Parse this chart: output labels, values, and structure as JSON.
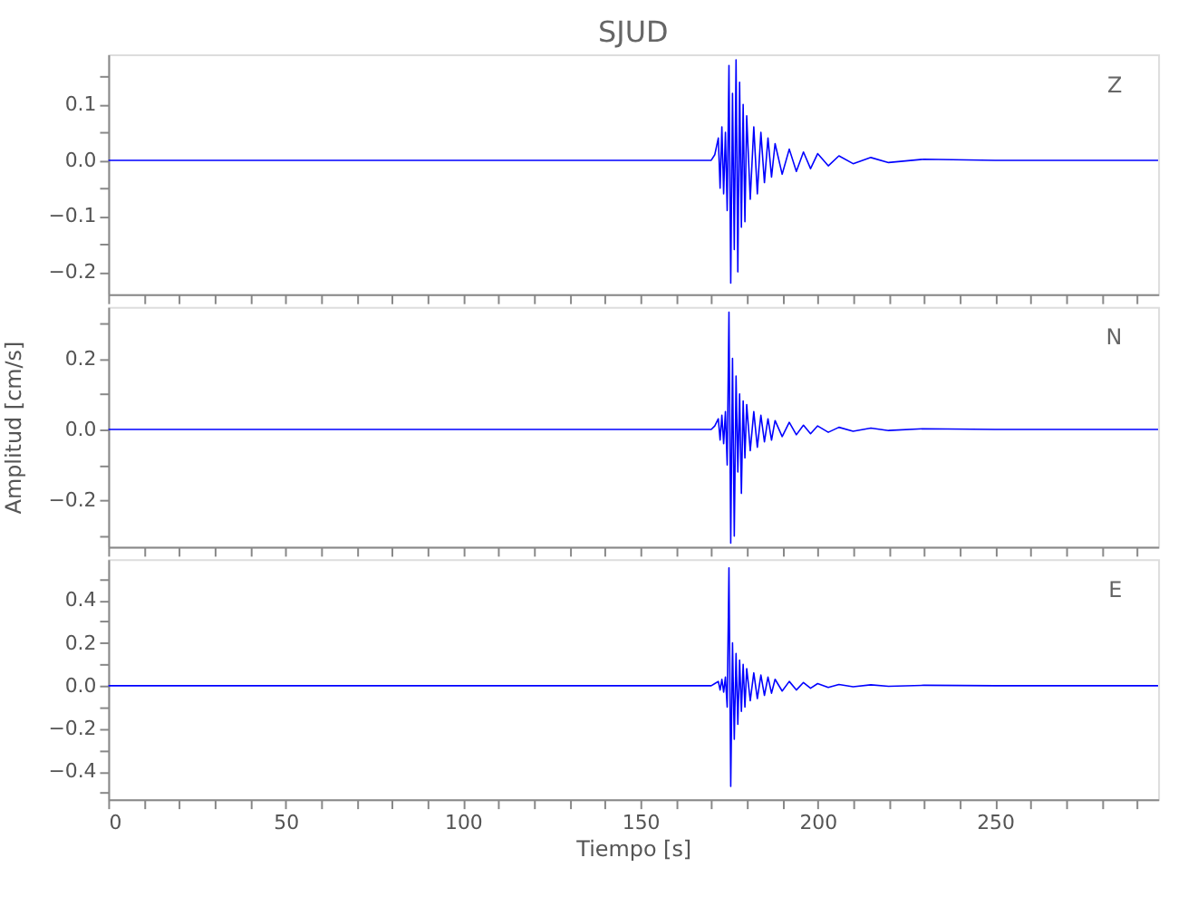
{
  "chart_data": [
    {
      "type": "line",
      "title": "SJUD",
      "annotations": [
        "Z"
      ],
      "tick_labels": "y",
      "grid": false,
      "marker": "none",
      "line_style": "solid",
      "xlim": [
        0,
        296
      ],
      "xticks": [
        0,
        {
          "value": 10,
          "label": null
        },
        {
          "value": 20,
          "label": null
        },
        {
          "value": 30,
          "label": null
        },
        {
          "value": 40,
          "label": null
        },
        50,
        {
          "value": 60,
          "label": null
        },
        {
          "value": 70,
          "label": null
        },
        {
          "value": 80,
          "label": null
        },
        {
          "value": 90,
          "label": null
        },
        100,
        {
          "value": 110,
          "label": null
        },
        {
          "value": 120,
          "label": null
        },
        {
          "value": 130,
          "label": null
        },
        {
          "value": 140,
          "label": null
        },
        150,
        {
          "value": 160,
          "label": null
        },
        {
          "value": 170,
          "label": null
        },
        {
          "value": 180,
          "label": null
        },
        {
          "value": 190,
          "label": null
        },
        200,
        {
          "value": 210,
          "label": null
        },
        {
          "value": 220,
          "label": null
        },
        {
          "value": 230,
          "label": null
        },
        {
          "value": 240,
          "label": null
        },
        250,
        {
          "value": 260,
          "label": null
        },
        {
          "value": 270,
          "label": null
        },
        {
          "value": 280,
          "label": null
        },
        {
          "value": 290,
          "label": null
        }
      ],
      "ylim": [
        -0.24,
        0.19
      ],
      "yticks": [
        {
          "value": -0.2,
          "label": "−0.2"
        },
        {
          "value": -0.15,
          "label": null
        },
        {
          "value": -0.1,
          "label": "−0.1"
        },
        {
          "value": -0.05,
          "label": null
        },
        {
          "value": 0,
          "label": "0.0"
        },
        {
          "value": 0.05,
          "label": null
        },
        {
          "value": 0.1,
          "label": "0.1"
        },
        {
          "value": 0.15,
          "label": null
        }
      ],
      "series": [
        {
          "color": "#0000ff",
          "x": [
            0,
            50,
            100,
            150,
            170,
            171,
            172,
            172.5,
            173,
            173.5,
            174,
            174.5,
            175,
            175.5,
            176,
            176.5,
            177,
            177.5,
            178,
            178.5,
            179,
            179.5,
            180,
            181,
            182,
            183,
            184,
            185,
            186,
            187,
            188,
            190,
            192,
            194,
            196,
            198,
            200,
            203,
            206,
            210,
            215,
            220,
            230,
            250,
            296
          ],
          "values": [
            0,
            0,
            0,
            0,
            0,
            0.01,
            0.04,
            -0.05,
            0.06,
            -0.06,
            0.05,
            -0.09,
            0.17,
            -0.22,
            0.12,
            -0.16,
            0.18,
            -0.2,
            0.14,
            -0.12,
            0.1,
            -0.11,
            0.08,
            -0.07,
            0.06,
            -0.06,
            0.05,
            -0.04,
            0.04,
            -0.03,
            0.03,
            -0.025,
            0.02,
            -0.02,
            0.015,
            -0.015,
            0.012,
            -0.01,
            0.008,
            -0.006,
            0.005,
            -0.004,
            0.002,
            0,
            0
          ]
        }
      ]
    },
    {
      "type": "line",
      "ylabel": "Amplitud [cm/s]",
      "annotations": [
        "N"
      ],
      "tick_labels": "y",
      "grid": false,
      "marker": "none",
      "line_style": "solid",
      "xlim": [
        0,
        296
      ],
      "xticks": [
        0,
        {
          "value": 10,
          "label": null
        },
        {
          "value": 20,
          "label": null
        },
        {
          "value": 30,
          "label": null
        },
        {
          "value": 40,
          "label": null
        },
        50,
        {
          "value": 60,
          "label": null
        },
        {
          "value": 70,
          "label": null
        },
        {
          "value": 80,
          "label": null
        },
        {
          "value": 90,
          "label": null
        },
        100,
        {
          "value": 110,
          "label": null
        },
        {
          "value": 120,
          "label": null
        },
        {
          "value": 130,
          "label": null
        },
        {
          "value": 140,
          "label": null
        },
        150,
        {
          "value": 160,
          "label": null
        },
        {
          "value": 170,
          "label": null
        },
        {
          "value": 180,
          "label": null
        },
        {
          "value": 190,
          "label": null
        },
        200,
        {
          "value": 210,
          "label": null
        },
        {
          "value": 220,
          "label": null
        },
        {
          "value": 230,
          "label": null
        },
        {
          "value": 240,
          "label": null
        },
        250,
        {
          "value": 260,
          "label": null
        },
        {
          "value": 270,
          "label": null
        },
        {
          "value": 280,
          "label": null
        },
        {
          "value": 290,
          "label": null
        }
      ],
      "ylim": [
        -0.33,
        0.345
      ],
      "yticks": [
        {
          "value": -0.3,
          "label": null
        },
        {
          "value": -0.2,
          "label": "−0.2"
        },
        {
          "value": -0.1,
          "label": null
        },
        {
          "value": 0,
          "label": "0.0"
        },
        {
          "value": 0.1,
          "label": null
        },
        {
          "value": 0.2,
          "label": "0.2"
        },
        {
          "value": 0.3,
          "label": null
        }
      ],
      "series": [
        {
          "color": "#0000ff",
          "x": [
            0,
            50,
            100,
            150,
            170,
            171,
            172,
            172.5,
            173,
            173.5,
            174,
            174.5,
            175,
            175.5,
            176,
            176.5,
            177,
            177.5,
            178,
            178.5,
            179,
            179.5,
            180,
            181,
            182,
            183,
            184,
            185,
            186,
            187,
            188,
            190,
            192,
            194,
            196,
            198,
            200,
            203,
            206,
            210,
            215,
            220,
            230,
            250,
            296
          ],
          "values": [
            0,
            0,
            0,
            0,
            0,
            0.01,
            0.03,
            -0.03,
            0.04,
            -0.04,
            0.05,
            -0.1,
            0.33,
            -0.32,
            0.2,
            -0.3,
            0.15,
            -0.12,
            0.1,
            -0.18,
            0.08,
            -0.08,
            0.07,
            -0.06,
            0.05,
            -0.05,
            0.04,
            -0.035,
            0.03,
            -0.03,
            0.025,
            -0.02,
            0.02,
            -0.015,
            0.012,
            -0.012,
            0.01,
            -0.008,
            0.006,
            -0.005,
            0.004,
            -0.003,
            0.002,
            0,
            0
          ]
        }
      ]
    },
    {
      "type": "line",
      "xlabel": "Tiempo [s]",
      "annotations": [
        "E"
      ],
      "grid": false,
      "marker": "none",
      "line_style": "solid",
      "xlim": [
        0,
        296
      ],
      "xticks": [
        0,
        {
          "value": 10,
          "label": null
        },
        {
          "value": 20,
          "label": null
        },
        {
          "value": 30,
          "label": null
        },
        {
          "value": 40,
          "label": null
        },
        50,
        {
          "value": 60,
          "label": null
        },
        {
          "value": 70,
          "label": null
        },
        {
          "value": 80,
          "label": null
        },
        {
          "value": 90,
          "label": null
        },
        100,
        {
          "value": 110,
          "label": null
        },
        {
          "value": 120,
          "label": null
        },
        {
          "value": 130,
          "label": null
        },
        {
          "value": 140,
          "label": null
        },
        150,
        {
          "value": 160,
          "label": null
        },
        {
          "value": 170,
          "label": null
        },
        {
          "value": 180,
          "label": null
        },
        {
          "value": 190,
          "label": null
        },
        200,
        {
          "value": 210,
          "label": null
        },
        {
          "value": 220,
          "label": null
        },
        {
          "value": 230,
          "label": null
        },
        {
          "value": 240,
          "label": null
        },
        250,
        {
          "value": 260,
          "label": null
        },
        {
          "value": 270,
          "label": null
        },
        {
          "value": 280,
          "label": null
        },
        {
          "value": 290,
          "label": null
        }
      ],
      "ylim": [
        -0.53,
        0.59
      ],
      "yticks": [
        {
          "value": -0.5,
          "label": null
        },
        {
          "value": -0.4,
          "label": "−0.4"
        },
        {
          "value": -0.3,
          "label": null
        },
        {
          "value": -0.2,
          "label": "−0.2"
        },
        {
          "value": -0.1,
          "label": null
        },
        {
          "value": 0,
          "label": "0.0"
        },
        {
          "value": 0.1,
          "label": null
        },
        {
          "value": 0.2,
          "label": "0.2"
        },
        {
          "value": 0.3,
          "label": null
        },
        {
          "value": 0.4,
          "label": "0.4"
        },
        {
          "value": 0.5,
          "label": null
        }
      ],
      "series": [
        {
          "color": "#0000ff",
          "x": [
            0,
            50,
            100,
            150,
            170,
            171,
            172,
            172.5,
            173,
            173.5,
            174,
            174.5,
            175,
            175.5,
            176,
            176.5,
            177,
            177.5,
            178,
            178.5,
            179,
            179.5,
            180,
            181,
            182,
            183,
            184,
            185,
            186,
            187,
            188,
            190,
            192,
            194,
            196,
            198,
            200,
            203,
            206,
            210,
            215,
            220,
            230,
            250,
            296
          ],
          "values": [
            0,
            0,
            0,
            0,
            0,
            0.01,
            0.02,
            -0.02,
            0.03,
            -0.03,
            0.04,
            -0.1,
            0.55,
            -0.47,
            0.2,
            -0.25,
            0.15,
            -0.18,
            0.12,
            -0.12,
            0.1,
            -0.1,
            0.08,
            -0.07,
            0.06,
            -0.06,
            0.05,
            -0.045,
            0.04,
            -0.035,
            0.03,
            -0.025,
            0.02,
            -0.02,
            0.015,
            -0.012,
            0.01,
            -0.008,
            0.006,
            -0.005,
            0.004,
            -0.003,
            0.002,
            0,
            0
          ]
        }
      ]
    }
  ]
}
